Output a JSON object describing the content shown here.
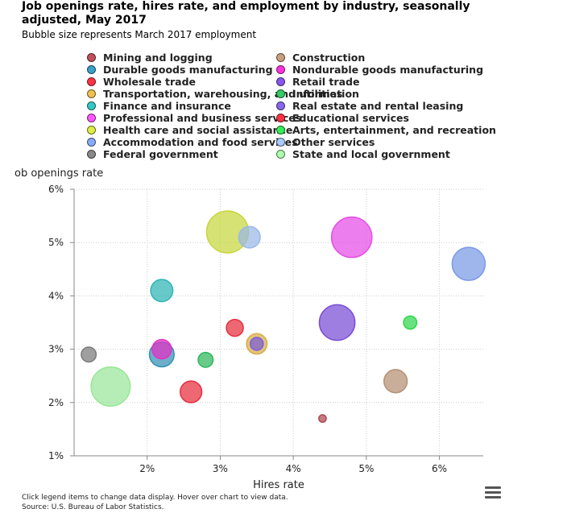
{
  "title": "Job openings rate, hires rate, and employment by industry, seasonally adjusted, May 2017",
  "subtitle": "Bubble size represents March 2017 employment",
  "footer": {
    "note": "Click legend items to change data display. Hover over chart to view data.",
    "source": "Source: U.S. Bureau of Labor Statistics."
  },
  "menu_icon": "hamburger-menu-icon",
  "chart_data": {
    "type": "scatter",
    "variant": "bubble",
    "title": "Job openings rate, hires rate, and employment by industry, seasonally adjusted, May 2017",
    "subtitle": "Bubble size represents March 2017 employment",
    "xlabel": "Hires rate",
    "ylabel": "ob openings rate",
    "xlim": [
      1.0,
      6.6
    ],
    "ylim": [
      1,
      6
    ],
    "xticks": [
      "2%",
      "3%",
      "4%",
      "5%",
      "6%"
    ],
    "yticks": [
      "1%",
      "2%",
      "3%",
      "4%",
      "5%",
      "6%"
    ],
    "grid": true,
    "legend": "top",
    "series": [
      {
        "name": "Mining and logging",
        "color": "#c0505a",
        "x": 4.4,
        "y": 1.7,
        "size": 0.7
      },
      {
        "name": "Construction",
        "color": "#c8a080",
        "x": 5.4,
        "y": 2.4,
        "size": 6.8
      },
      {
        "name": "Durable goods manufacturing",
        "color": "#3aa0c8",
        "x": 2.2,
        "y": 2.9,
        "size": 7.7
      },
      {
        "name": "Nondurable goods manufacturing",
        "color": "#ff33dd",
        "x": 2.2,
        "y": 3.0,
        "size": 4.7
      },
      {
        "name": "Wholesale trade",
        "color": "#ff3344",
        "x": 2.6,
        "y": 2.2,
        "size": 5.9
      },
      {
        "name": "Retail trade",
        "color": "#8855ee",
        "x": 4.6,
        "y": 3.5,
        "size": 16.0
      },
      {
        "name": "Transportation, warehousing, and utilities",
        "color": "#f0c050",
        "x": 3.5,
        "y": 3.1,
        "size": 5.3
      },
      {
        "name": "Information",
        "color": "#33cc66",
        "x": 2.8,
        "y": 2.8,
        "size": 2.8
      },
      {
        "name": "Finance and insurance",
        "color": "#33c8c8",
        "x": 2.2,
        "y": 4.1,
        "size": 6.2
      },
      {
        "name": "Real estate and rental leasing",
        "color": "#8866ee",
        "x": 3.5,
        "y": 3.1,
        "size": 2.1
      },
      {
        "name": "Professional and business services",
        "color": "#ff55ff",
        "x": 4.8,
        "y": 5.1,
        "size": 20.6
      },
      {
        "name": "Educational services",
        "color": "#ff3344",
        "x": 3.2,
        "y": 3.4,
        "size": 3.6
      },
      {
        "name": "Health care and social assistance",
        "color": "#ddee44",
        "x": 3.1,
        "y": 5.2,
        "size": 22.2
      },
      {
        "name": "Arts, entertainment, and recreation",
        "color": "#33ee55",
        "x": 5.6,
        "y": 3.5,
        "size": 2.2
      },
      {
        "name": "Accommodation and food services",
        "color": "#88aaff",
        "x": 6.4,
        "y": 4.6,
        "size": 13.8
      },
      {
        "name": "Other services",
        "color": "#aaccff",
        "x": 3.4,
        "y": 5.1,
        "size": 5.8
      },
      {
        "name": "Federal government",
        "color": "#888888",
        "x": 1.2,
        "y": 2.9,
        "size": 2.8
      },
      {
        "name": "State and local government",
        "color": "#aaffaa",
        "x": 1.5,
        "y": 2.3,
        "size": 19.4
      }
    ]
  }
}
